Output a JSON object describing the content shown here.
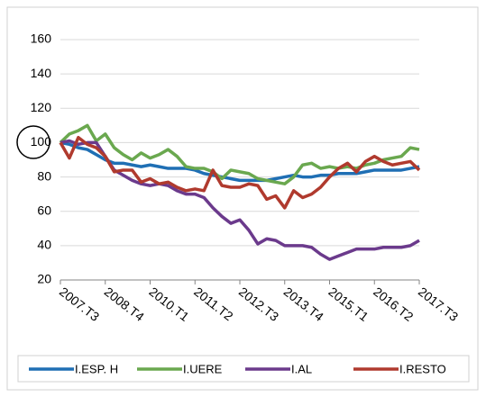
{
  "chart_data": {
    "type": "line",
    "categories": [
      "2007.T3",
      null,
      null,
      null,
      null,
      "2008.T4",
      null,
      null,
      null,
      null,
      "2010.T1",
      null,
      null,
      null,
      null,
      "2011.T2",
      null,
      null,
      null,
      null,
      "2012.T3",
      null,
      null,
      null,
      null,
      "2013.T4",
      null,
      null,
      null,
      null,
      "2015.T1",
      null,
      null,
      null,
      null,
      "2016.T2",
      null,
      null,
      null,
      null,
      "2017.T3"
    ],
    "series": [
      {
        "name": "I.ESP. H",
        "color": "#1f6fb4",
        "values": [
          100,
          99,
          97,
          96,
          93,
          90,
          88,
          88,
          87,
          86,
          87,
          86,
          85,
          85,
          85,
          84,
          82,
          81,
          80,
          79,
          78,
          78,
          78,
          78,
          79,
          80,
          81,
          80,
          80,
          81,
          81,
          82,
          82,
          82,
          83,
          84,
          84,
          84,
          84,
          85,
          86
        ]
      },
      {
        "name": "I.UERE",
        "color": "#6aa84f",
        "values": [
          100,
          105,
          107,
          110,
          101,
          105,
          97,
          93,
          90,
          94,
          91,
          93,
          96,
          92,
          86,
          85,
          85,
          83,
          79,
          84,
          83,
          82,
          79,
          78,
          77,
          76,
          80,
          87,
          88,
          85,
          86,
          85,
          86,
          85,
          87,
          88,
          90,
          91,
          92,
          97,
          96
        ]
      },
      {
        "name": "I.AL",
        "color": "#6b3a8c",
        "values": [
          100,
          101,
          99,
          100,
          100,
          92,
          84,
          81,
          78,
          76,
          75,
          76,
          75,
          72,
          70,
          70,
          68,
          62,
          57,
          53,
          55,
          49,
          41,
          44,
          43,
          40,
          40,
          40,
          39,
          35,
          32,
          34,
          36,
          38,
          38,
          38,
          39,
          39,
          39,
          40,
          43
        ]
      },
      {
        "name": "I.RESTO",
        "color": "#b03a2e",
        "values": [
          100,
          91,
          103,
          99,
          97,
          92,
          83,
          84,
          84,
          77,
          79,
          76,
          77,
          74,
          72,
          73,
          72,
          84,
          75,
          74,
          74,
          76,
          75,
          67,
          69,
          62,
          72,
          68,
          70,
          74,
          80,
          85,
          88,
          83,
          89,
          92,
          89,
          87,
          88,
          89,
          84
        ]
      }
    ],
    "ylim": [
      20,
      160
    ],
    "yticks": [
      20,
      40,
      60,
      80,
      100,
      120,
      140,
      160
    ],
    "grid": true,
    "legend": "bottom"
  }
}
